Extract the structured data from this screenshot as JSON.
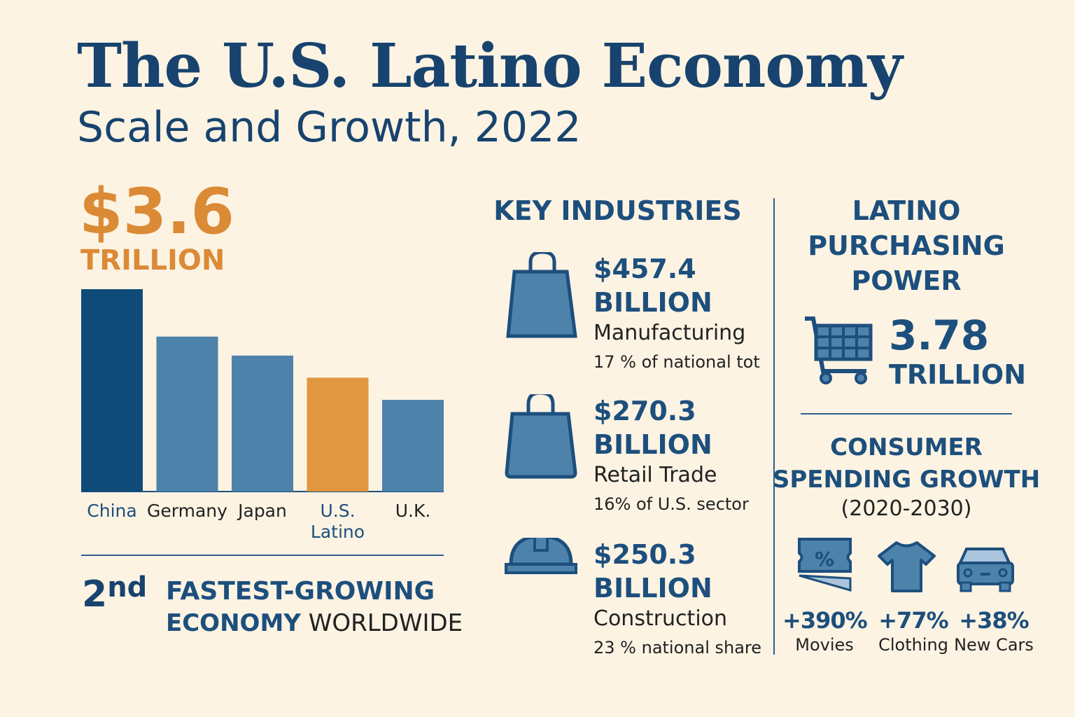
{
  "header": {
    "title": "The U.S. Latino Economy",
    "subtitle": "Scale and Growth, 2022"
  },
  "headline": {
    "value": "$3.6",
    "unit": "TRILLION"
  },
  "colors": {
    "navy": "#0f4a78",
    "steel": "#4d82ab",
    "orange": "#e0973f",
    "text": "#17436e",
    "background": "#fcf3e3"
  },
  "chart_data": {
    "type": "bar",
    "title": "",
    "xlabel": "",
    "ylabel": "",
    "grid": false,
    "categories": [
      "China",
      "Germany",
      "Japan",
      "U.S. Latino",
      "U.K."
    ],
    "values": [
      6.4,
      4.9,
      4.3,
      3.6,
      2.9
    ],
    "highlight": "U.S. Latino",
    "ylim": [
      0,
      6.4
    ]
  },
  "ranking": {
    "ordinal": "2",
    "suffix": "nd",
    "line1": "FASTEST-GROWING",
    "line2a": "ECONOMY",
    "line2b": "WORLDWIDE"
  },
  "industries": {
    "title": "KEY INDUSTRIES",
    "items": [
      {
        "icon": "shopping-bag-icon",
        "value": "$457.4",
        "unit": "BILLION",
        "name": "Manufacturing",
        "share": "17 % of national tot"
      },
      {
        "icon": "shopping-bag-icon",
        "value": "$270.3",
        "unit": "BILLION",
        "name": "Retail Trade",
        "share": "16% of U.S. sector"
      },
      {
        "icon": "hard-hat-icon",
        "value": "$250.3",
        "unit": "BILLION",
        "name": "Construction",
        "share": "23 % national share"
      }
    ]
  },
  "purchasing": {
    "title1": "LATINO",
    "title2": "PURCHASING",
    "title3": "POWER",
    "value": "3.78",
    "unit": "TRILLION"
  },
  "spending": {
    "title1": "CONSUMER",
    "title2": "SPENDING GROWTH",
    "period": "(2020-2030)",
    "items": [
      {
        "icon": "ticket-icon",
        "pct": "+390%",
        "label": "Movies"
      },
      {
        "icon": "t-shirt-icon",
        "pct": "+77%",
        "label": "Clothing"
      },
      {
        "icon": "car-icon",
        "pct": "+38%",
        "label": "New Cars"
      }
    ]
  }
}
